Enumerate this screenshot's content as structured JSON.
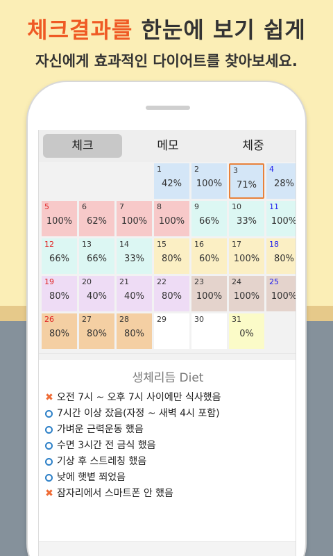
{
  "headline": {
    "highlight": "체크결과를",
    "rest": " 한눈에 보기 쉽게"
  },
  "subhead": "자신에게 효과적인 다이어트를 찾아보세요.",
  "tabs": [
    {
      "label": "체크",
      "active": true
    },
    {
      "label": "메모",
      "active": false
    },
    {
      "label": "체중",
      "active": false
    }
  ],
  "calendar": {
    "days": [
      {
        "day": "1",
        "pct": "42%",
        "color": "#d4e6f7",
        "numColor": "#333333"
      },
      {
        "day": "2",
        "pct": "100%",
        "color": "#d4e6f7",
        "numColor": "#333333"
      },
      {
        "day": "3",
        "pct": "71%",
        "color": "#d4e6f7",
        "numColor": "#333333",
        "today": true
      },
      {
        "day": "4",
        "pct": "28%",
        "color": "#d4e6f7",
        "numColor": "#1a1aee"
      },
      {
        "day": "5",
        "pct": "100%",
        "color": "#f7c9c9",
        "numColor": "#e02020"
      },
      {
        "day": "6",
        "pct": "62%",
        "color": "#f7c9c9",
        "numColor": "#333333"
      },
      {
        "day": "7",
        "pct": "100%",
        "color": "#f7c9c9",
        "numColor": "#333333"
      },
      {
        "day": "8",
        "pct": "100%",
        "color": "#f7c9c9",
        "numColor": "#333333"
      },
      {
        "day": "9",
        "pct": "66%",
        "color": "#dcf7f3",
        "numColor": "#333333"
      },
      {
        "day": "10",
        "pct": "33%",
        "color": "#dcf7f3",
        "numColor": "#333333"
      },
      {
        "day": "11",
        "pct": "100%",
        "color": "#dcf7f3",
        "numColor": "#1a1aee"
      },
      {
        "day": "12",
        "pct": "66%",
        "color": "#dcf7f3",
        "numColor": "#e02020"
      },
      {
        "day": "13",
        "pct": "66%",
        "color": "#dcf7f3",
        "numColor": "#333333"
      },
      {
        "day": "14",
        "pct": "33%",
        "color": "#dcf7f3",
        "numColor": "#333333"
      },
      {
        "day": "15",
        "pct": "80%",
        "color": "#fbefc4",
        "numColor": "#333333"
      },
      {
        "day": "16",
        "pct": "60%",
        "color": "#fbefc4",
        "numColor": "#333333"
      },
      {
        "day": "17",
        "pct": "100%",
        "color": "#fbefc4",
        "numColor": "#333333"
      },
      {
        "day": "18",
        "pct": "80%",
        "color": "#fbefc4",
        "numColor": "#1a1aee"
      },
      {
        "day": "19",
        "pct": "80%",
        "color": "#eedcf5",
        "numColor": "#e02020"
      },
      {
        "day": "20",
        "pct": "40%",
        "color": "#eedcf5",
        "numColor": "#333333"
      },
      {
        "day": "21",
        "pct": "40%",
        "color": "#eedcf5",
        "numColor": "#333333"
      },
      {
        "day": "22",
        "pct": "80%",
        "color": "#eedcf5",
        "numColor": "#333333"
      },
      {
        "day": "23",
        "pct": "100%",
        "color": "#e4d3cc",
        "numColor": "#333333"
      },
      {
        "day": "24",
        "pct": "100%",
        "color": "#e4d3cc",
        "numColor": "#333333"
      },
      {
        "day": "25",
        "pct": "100%",
        "color": "#e4d3cc",
        "numColor": "#1a1aee"
      },
      {
        "day": "26",
        "pct": "80%",
        "color": "#f4cfa3",
        "numColor": "#e02020"
      },
      {
        "day": "27",
        "pct": "80%",
        "color": "#f4cfa3",
        "numColor": "#333333"
      },
      {
        "day": "28",
        "pct": "80%",
        "color": "#f4cfa3",
        "numColor": "#333333"
      },
      {
        "day": "29",
        "pct": "",
        "color": "#ffffff",
        "numColor": "#333333"
      },
      {
        "day": "30",
        "pct": "",
        "color": "#ffffff",
        "numColor": "#333333"
      },
      {
        "day": "31",
        "pct": "0%",
        "color": "#fbfbc8",
        "numColor": "#333333"
      }
    ]
  },
  "checklist": {
    "title": "생체리듬 Diet",
    "items": [
      {
        "mark": "x",
        "text": "오전 7시 ~ 오후 7시 사이에만 식사했음"
      },
      {
        "mark": "o",
        "text": "7시간 이상 잤음(자정 ~ 새벽 4시 포함)"
      },
      {
        "mark": "o",
        "text": "가벼운 근력운동 했음"
      },
      {
        "mark": "o",
        "text": "수면 3시간 전 금식 했음"
      },
      {
        "mark": "o",
        "text": "기상 후 스트레칭 했음"
      },
      {
        "mark": "o",
        "text": "낮에 햇볕 쬐었음"
      },
      {
        "mark": "x",
        "text": "잠자리에서 스마트폰 안 했음"
      }
    ]
  }
}
